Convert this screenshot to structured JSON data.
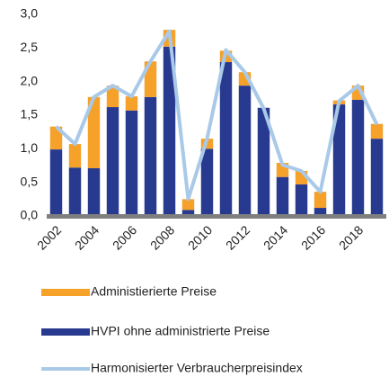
{
  "chart_data": {
    "type": "bar",
    "categories": [
      "2002",
      null,
      "2004",
      null,
      "2006",
      null,
      "2008",
      null,
      "2010",
      null,
      "2012",
      null,
      "2014",
      null,
      "2016",
      null,
      "2018",
      null
    ],
    "series": [
      {
        "name": "Administierierte Preise",
        "color": "#f5a12a",
        "type": "bar",
        "values": [
          0.34,
          0.35,
          1.06,
          0.32,
          0.21,
          0.53,
          0.25,
          0.16,
          0.15,
          0.17,
          0.2,
          0,
          0.21,
          0.2,
          0.24,
          0.06,
          0.21,
          0.22
        ]
      },
      {
        "name": "HVPI ohne administrierte Preise",
        "color": "#283a8f",
        "type": "bar",
        "values": [
          0.99,
          0.72,
          0.71,
          1.62,
          1.57,
          1.77,
          2.52,
          0.09,
          1.0,
          2.29,
          1.94,
          1.61,
          0.58,
          0.47,
          0.12,
          1.66,
          1.73,
          1.15
        ]
      },
      {
        "name": "Harmonisierter Verbraucherpreisindex",
        "color": "#a9c9e8",
        "type": "line",
        "values": [
          1.33,
          1.07,
          1.77,
          1.94,
          1.78,
          2.3,
          2.75,
          0.25,
          1.15,
          2.47,
          2.14,
          1.6,
          0.76,
          0.67,
          0.36,
          1.71,
          1.94,
          1.36
        ]
      }
    ],
    "ylim": [
      0,
      3
    ],
    "yticks": [
      {
        "value": 0,
        "label": "0,0"
      },
      {
        "value": 0.5,
        "label": "0,5"
      },
      {
        "value": 1,
        "label": "1,0"
      },
      {
        "value": 1.5,
        "label": "1,5"
      },
      {
        "value": 2,
        "label": "2,0"
      },
      {
        "value": 2.5,
        "label": "2,5"
      },
      {
        "value": 3,
        "label": "3,0"
      }
    ],
    "grid": false
  }
}
